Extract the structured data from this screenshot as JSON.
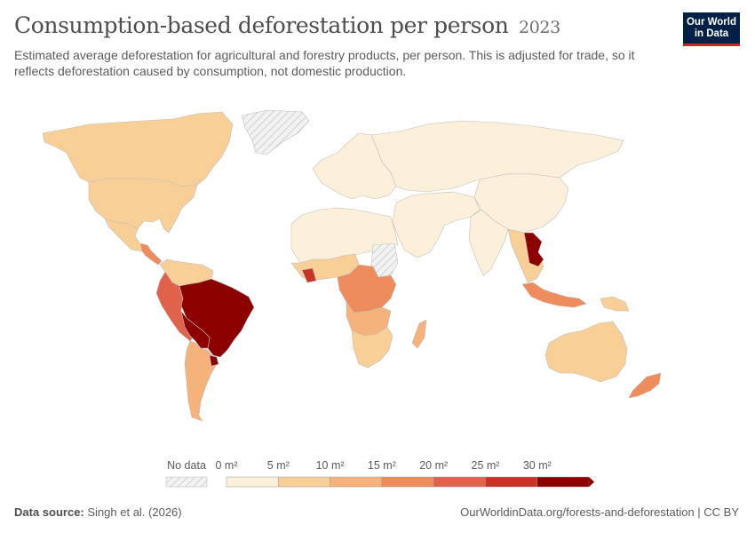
{
  "header": {
    "title": "Consumption-based deforestation per person",
    "year": "2023",
    "subtitle": "Estimated average deforestation for agricultural and forestry products, per person. This is adjusted for trade, so it reflects deforestation caused by consumption, not domestic production."
  },
  "logo": {
    "line1": "Our World",
    "line2": "in Data"
  },
  "legend": {
    "no_data_label": "No data",
    "bins": [
      {
        "label": "0 m²",
        "color": "#fdf0da"
      },
      {
        "label": "5 m²",
        "color": "#f8cf96"
      },
      {
        "label": "10 m²",
        "color": "#f5b27a"
      },
      {
        "label": "15 m²",
        "color": "#ee8c5c"
      },
      {
        "label": "20 m²",
        "color": "#e1624a"
      },
      {
        "label": "25 m²",
        "color": "#c83423"
      },
      {
        "label": "30 m²",
        "color": "#8c0000"
      }
    ]
  },
  "footer": {
    "source_label": "Data source:",
    "source_text": "Singh et al. (2026)",
    "right_text": "OurWorldinData.org/forests-and-deforestation | CC BY"
  },
  "colors": {
    "no_data": "#e6e6e6",
    "border": "#bfbfbf",
    "scale": [
      "#fdf0da",
      "#f8cf96",
      "#f5b27a",
      "#ee8c5c",
      "#e1624a",
      "#c83423",
      "#8c0000"
    ]
  },
  "regions": [
    {
      "name": "Canada",
      "bin": 1
    },
    {
      "name": "United States",
      "bin": 1
    },
    {
      "name": "Mexico",
      "bin": 1
    },
    {
      "name": "Central America",
      "bin": 3
    },
    {
      "name": "Colombia & Venezuela",
      "bin": 1
    },
    {
      "name": "Ecuador & Peru",
      "bin": 4
    },
    {
      "name": "Brazil",
      "bin": 6
    },
    {
      "name": "Bolivia & Paraguay",
      "bin": 6
    },
    {
      "name": "Argentina & Chile",
      "bin": 2
    },
    {
      "name": "Uruguay",
      "bin": 6
    },
    {
      "name": "Greenland",
      "bin": null
    },
    {
      "name": "Europe",
      "bin": 0
    },
    {
      "name": "Russia & Central Asia",
      "bin": 0
    },
    {
      "name": "China",
      "bin": 0
    },
    {
      "name": "Middle East",
      "bin": 0
    },
    {
      "name": "India",
      "bin": 0
    },
    {
      "name": "Southeast Asia",
      "bin": 1
    },
    {
      "name": "Laos & Cambodia",
      "bin": 6
    },
    {
      "name": "Indonesia",
      "bin": 3
    },
    {
      "name": "Papua New Guinea",
      "bin": 1
    },
    {
      "name": "Australia",
      "bin": 1
    },
    {
      "name": "New Zealand",
      "bin": 3
    },
    {
      "name": "North Africa",
      "bin": 0
    },
    {
      "name": "Sudan",
      "bin": null
    },
    {
      "name": "West Africa",
      "bin": 1
    },
    {
      "name": "Cote d'Ivoire",
      "bin": 5
    },
    {
      "name": "Central Africa",
      "bin": 3
    },
    {
      "name": "Angola & Zambia",
      "bin": 2
    },
    {
      "name": "Southern Africa",
      "bin": 1
    },
    {
      "name": "Madagascar",
      "bin": 2
    }
  ]
}
